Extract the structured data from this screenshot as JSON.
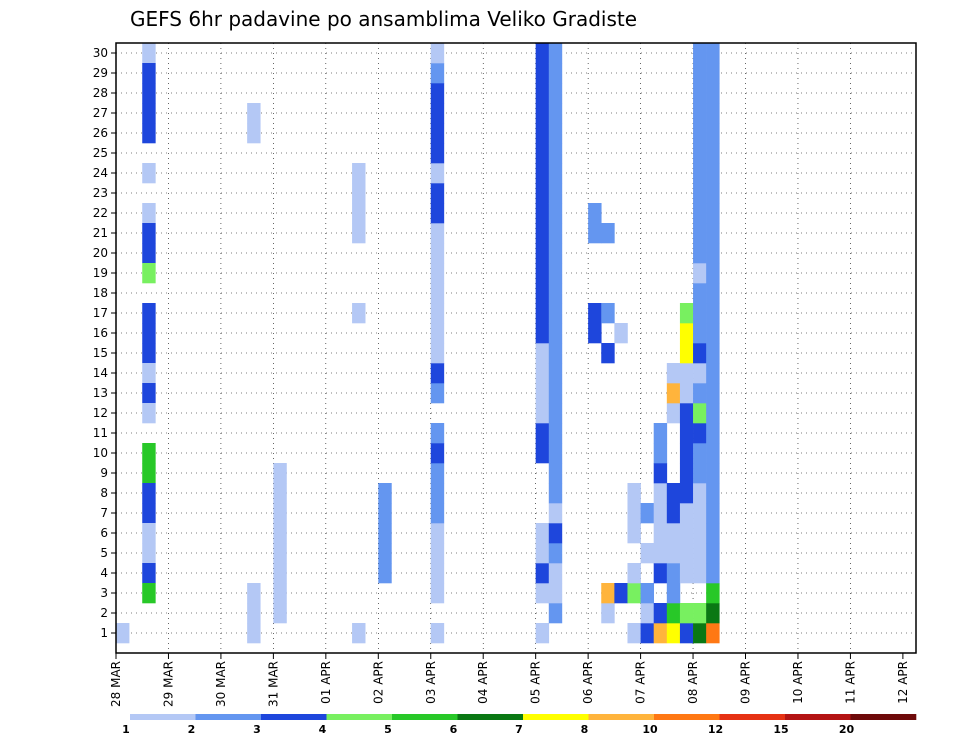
{
  "chart_data": {
    "type": "heatmap",
    "title": "GEFS 6hr padavine po ansamblima Veliko Gradiste",
    "y_ticks": [
      "1",
      "2",
      "3",
      "4",
      "5",
      "6",
      "7",
      "8",
      "9",
      "10",
      "11",
      "12",
      "13",
      "14",
      "15",
      "16",
      "17",
      "18",
      "19",
      "20",
      "21",
      "22",
      "23",
      "24",
      "25",
      "26",
      "27",
      "28",
      "29",
      "30"
    ],
    "x_ticks": [
      "28 MAR",
      "29 MAR",
      "30 MAR",
      "31 MAR",
      "01 APR",
      "02 APR",
      "03 APR",
      "04 APR",
      "05 APR",
      "06 APR",
      "07 APR",
      "08 APR",
      "09 APR",
      "10 APR",
      "11 APR",
      "12 APR"
    ],
    "time_step_hours": 6,
    "members": 30,
    "grid": true,
    "colorbar": {
      "labels": [
        "1",
        "2",
        "3",
        "4",
        "5",
        "6",
        "7",
        "8",
        "10",
        "12",
        "15",
        "20"
      ],
      "colors": [
        "#b4c8f5",
        "#6496f0",
        "#1e46dc",
        "#78f060",
        "#28c828",
        "#0a7814",
        "#ffff00",
        "#ffb43c",
        "#ff7814",
        "#e63214",
        "#b41414",
        "#6e0a0a"
      ]
    },
    "values": [
      [
        0,
        1,
        1
      ],
      [
        2,
        30,
        1
      ],
      [
        2,
        29,
        3
      ],
      [
        2,
        28,
        3
      ],
      [
        2,
        27,
        3
      ],
      [
        2,
        26,
        3
      ],
      [
        2,
        24,
        1
      ],
      [
        2,
        22,
        1
      ],
      [
        2,
        21,
        3
      ],
      [
        2,
        20,
        3
      ],
      [
        2,
        19,
        4
      ],
      [
        2,
        17,
        3
      ],
      [
        2,
        16,
        3
      ],
      [
        2,
        15,
        3
      ],
      [
        2,
        14,
        1
      ],
      [
        2,
        13,
        3
      ],
      [
        2,
        12,
        1
      ],
      [
        2,
        10,
        5
      ],
      [
        2,
        9,
        5
      ],
      [
        2,
        8,
        3
      ],
      [
        2,
        7,
        3
      ],
      [
        2,
        6,
        1
      ],
      [
        2,
        5,
        1
      ],
      [
        2,
        4,
        3
      ],
      [
        2,
        3,
        5
      ],
      [
        10,
        1,
        1
      ],
      [
        10,
        2,
        1
      ],
      [
        10,
        3,
        1
      ],
      [
        10,
        26,
        1
      ],
      [
        10,
        27,
        1
      ],
      [
        12,
        2,
        1
      ],
      [
        12,
        3,
        1
      ],
      [
        12,
        4,
        1
      ],
      [
        12,
        5,
        1
      ],
      [
        12,
        6,
        1
      ],
      [
        12,
        7,
        1
      ],
      [
        12,
        8,
        1
      ],
      [
        12,
        9,
        1
      ],
      [
        18,
        1,
        1
      ],
      [
        18,
        17,
        1
      ],
      [
        18,
        21,
        1
      ],
      [
        18,
        22,
        1
      ],
      [
        18,
        23,
        1
      ],
      [
        18,
        24,
        1
      ],
      [
        20,
        4,
        2
      ],
      [
        20,
        5,
        2
      ],
      [
        20,
        6,
        2
      ],
      [
        20,
        7,
        2
      ],
      [
        20,
        8,
        2
      ],
      [
        24,
        1,
        1
      ],
      [
        24,
        3,
        1
      ],
      [
        24,
        4,
        1
      ],
      [
        24,
        5,
        1
      ],
      [
        24,
        6,
        1
      ],
      [
        24,
        7,
        2
      ],
      [
        24,
        8,
        2
      ],
      [
        24,
        9,
        2
      ],
      [
        24,
        10,
        3
      ],
      [
        24,
        11,
        2
      ],
      [
        24,
        13,
        2
      ],
      [
        24,
        14,
        3
      ],
      [
        24,
        15,
        1
      ],
      [
        24,
        16,
        1
      ],
      [
        24,
        17,
        1
      ],
      [
        24,
        18,
        1
      ],
      [
        24,
        19,
        1
      ],
      [
        24,
        20,
        1
      ],
      [
        24,
        21,
        1
      ],
      [
        24,
        22,
        3
      ],
      [
        24,
        23,
        3
      ],
      [
        24,
        24,
        1
      ],
      [
        24,
        25,
        3
      ],
      [
        24,
        26,
        3
      ],
      [
        24,
        27,
        3
      ],
      [
        24,
        28,
        3
      ],
      [
        24,
        29,
        2
      ],
      [
        24,
        30,
        1
      ],
      [
        32,
        1,
        1
      ],
      [
        32,
        3,
        1
      ],
      [
        32,
        4,
        3
      ],
      [
        32,
        5,
        1
      ],
      [
        32,
        6,
        1
      ],
      [
        32,
        10,
        3
      ],
      [
        32,
        11,
        3
      ],
      [
        32,
        12,
        1
      ],
      [
        32,
        13,
        1
      ],
      [
        32,
        14,
        1
      ],
      [
        32,
        15,
        1
      ],
      [
        32,
        16,
        3
      ],
      [
        32,
        17,
        3
      ],
      [
        32,
        18,
        3
      ],
      [
        32,
        19,
        3
      ],
      [
        32,
        20,
        3
      ],
      [
        32,
        21,
        3
      ],
      [
        32,
        22,
        3
      ],
      [
        32,
        23,
        3
      ],
      [
        32,
        24,
        3
      ],
      [
        32,
        25,
        3
      ],
      [
        32,
        26,
        3
      ],
      [
        32,
        27,
        3
      ],
      [
        32,
        28,
        3
      ],
      [
        32,
        29,
        3
      ],
      [
        32,
        30,
        3
      ],
      [
        33,
        2,
        2
      ],
      [
        33,
        3,
        1
      ],
      [
        33,
        4,
        1
      ],
      [
        33,
        5,
        2
      ],
      [
        33,
        6,
        3
      ],
      [
        33,
        7,
        1
      ],
      [
        33,
        8,
        2
      ],
      [
        33,
        9,
        2
      ],
      [
        33,
        10,
        2
      ],
      [
        33,
        11,
        2
      ],
      [
        33,
        12,
        2
      ],
      [
        33,
        13,
        2
      ],
      [
        33,
        14,
        2
      ],
      [
        33,
        15,
        2
      ],
      [
        33,
        16,
        2
      ],
      [
        33,
        17,
        2
      ],
      [
        33,
        18,
        2
      ],
      [
        33,
        19,
        2
      ],
      [
        33,
        20,
        2
      ],
      [
        33,
        21,
        2
      ],
      [
        33,
        22,
        2
      ],
      [
        33,
        23,
        2
      ],
      [
        33,
        24,
        2
      ],
      [
        33,
        25,
        2
      ],
      [
        33,
        26,
        2
      ],
      [
        33,
        27,
        2
      ],
      [
        33,
        28,
        2
      ],
      [
        33,
        29,
        2
      ],
      [
        33,
        30,
        2
      ],
      [
        36,
        16,
        3
      ],
      [
        36,
        17,
        3
      ],
      [
        36,
        21,
        2
      ],
      [
        36,
        22,
        2
      ],
      [
        37,
        2,
        1
      ],
      [
        37,
        3,
        8
      ],
      [
        37,
        15,
        3
      ],
      [
        37,
        17,
        2
      ],
      [
        37,
        21,
        2
      ],
      [
        38,
        3,
        3
      ],
      [
        38,
        16,
        1
      ],
      [
        39,
        1,
        1
      ],
      [
        39,
        3,
        4
      ],
      [
        39,
        4,
        1
      ],
      [
        39,
        6,
        1
      ],
      [
        39,
        7,
        1
      ],
      [
        39,
        8,
        1
      ],
      [
        40,
        1,
        3
      ],
      [
        40,
        2,
        1
      ],
      [
        40,
        3,
        2
      ],
      [
        40,
        5,
        1
      ],
      [
        40,
        7,
        2
      ],
      [
        41,
        1,
        8
      ],
      [
        41,
        2,
        3
      ],
      [
        41,
        4,
        3
      ],
      [
        41,
        5,
        1
      ],
      [
        41,
        6,
        1
      ],
      [
        41,
        7,
        1
      ],
      [
        41,
        8,
        1
      ],
      [
        41,
        9,
        3
      ],
      [
        41,
        10,
        2
      ],
      [
        41,
        11,
        2
      ],
      [
        42,
        1,
        7
      ],
      [
        42,
        2,
        5
      ],
      [
        42,
        3,
        2
      ],
      [
        42,
        4,
        2
      ],
      [
        42,
        5,
        1
      ],
      [
        42,
        6,
        1
      ],
      [
        42,
        7,
        3
      ],
      [
        42,
        8,
        3
      ],
      [
        42,
        12,
        1
      ],
      [
        42,
        13,
        8
      ],
      [
        42,
        14,
        1
      ],
      [
        43,
        1,
        3
      ],
      [
        43,
        2,
        4
      ],
      [
        43,
        4,
        1
      ],
      [
        43,
        5,
        1
      ],
      [
        43,
        6,
        1
      ],
      [
        43,
        7,
        1
      ],
      [
        43,
        8,
        3
      ],
      [
        43,
        9,
        3
      ],
      [
        43,
        10,
        3
      ],
      [
        43,
        11,
        3
      ],
      [
        43,
        12,
        3
      ],
      [
        43,
        13,
        1
      ],
      [
        43,
        14,
        1
      ],
      [
        43,
        15,
        7
      ],
      [
        43,
        16,
        7
      ],
      [
        43,
        17,
        4
      ],
      [
        44,
        1,
        6
      ],
      [
        44,
        2,
        4
      ],
      [
        44,
        4,
        1
      ],
      [
        44,
        5,
        1
      ],
      [
        44,
        6,
        1
      ],
      [
        44,
        7,
        1
      ],
      [
        44,
        8,
        1
      ],
      [
        44,
        9,
        2
      ],
      [
        44,
        10,
        2
      ],
      [
        44,
        11,
        3
      ],
      [
        44,
        12,
        4
      ],
      [
        44,
        13,
        2
      ],
      [
        44,
        14,
        1
      ],
      [
        44,
        15,
        3
      ],
      [
        44,
        16,
        2
      ],
      [
        44,
        17,
        2
      ],
      [
        44,
        18,
        2
      ],
      [
        44,
        19,
        1
      ],
      [
        44,
        20,
        2
      ],
      [
        44,
        21,
        2
      ],
      [
        44,
        22,
        2
      ],
      [
        44,
        23,
        2
      ],
      [
        44,
        24,
        2
      ],
      [
        44,
        25,
        2
      ],
      [
        44,
        26,
        2
      ],
      [
        44,
        27,
        2
      ],
      [
        44,
        28,
        2
      ],
      [
        44,
        29,
        2
      ],
      [
        44,
        30,
        2
      ],
      [
        45,
        1,
        9
      ],
      [
        45,
        2,
        6
      ],
      [
        45,
        3,
        5
      ],
      [
        45,
        4,
        2
      ],
      [
        45,
        5,
        2
      ],
      [
        45,
        6,
        2
      ],
      [
        45,
        7,
        2
      ],
      [
        45,
        8,
        2
      ],
      [
        45,
        9,
        2
      ],
      [
        45,
        10,
        2
      ],
      [
        45,
        11,
        2
      ],
      [
        45,
        12,
        2
      ],
      [
        45,
        13,
        2
      ],
      [
        45,
        14,
        2
      ],
      [
        45,
        15,
        2
      ],
      [
        45,
        16,
        2
      ],
      [
        45,
        17,
        2
      ],
      [
        45,
        18,
        2
      ],
      [
        45,
        19,
        2
      ],
      [
        45,
        20,
        2
      ],
      [
        45,
        21,
        2
      ],
      [
        45,
        22,
        2
      ],
      [
        45,
        23,
        2
      ],
      [
        45,
        24,
        2
      ],
      [
        45,
        25,
        2
      ],
      [
        45,
        26,
        2
      ],
      [
        45,
        27,
        2
      ],
      [
        45,
        28,
        2
      ],
      [
        45,
        29,
        2
      ],
      [
        45,
        30,
        2
      ]
    ]
  }
}
